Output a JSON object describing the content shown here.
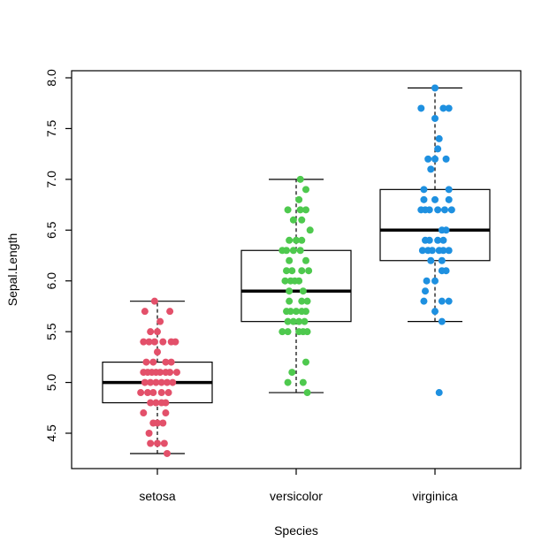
{
  "chart_data": {
    "type": "box",
    "xlabel": "Species",
    "ylabel": "Sepal.Length",
    "ylim": [
      4.2,
      8.05
    ],
    "yticks": [
      "4.5",
      "5.0",
      "5.5",
      "6.0",
      "6.5",
      "7.0",
      "7.5",
      "8.0"
    ],
    "categories": [
      "setosa",
      "versicolor",
      "virginica"
    ],
    "boxes": [
      {
        "category": "setosa",
        "min": 4.3,
        "q1": 4.8,
        "median": 5.0,
        "q3": 5.2,
        "max": 5.8,
        "color": "#e3506a",
        "points": [
          [
            -0.09,
            5.7
          ],
          [
            0.09,
            5.7
          ],
          [
            -0.02,
            5.8
          ],
          [
            0.02,
            5.6
          ],
          [
            0.0,
            5.5
          ],
          [
            -0.05,
            5.5
          ],
          [
            -0.1,
            5.4
          ],
          [
            -0.06,
            5.4
          ],
          [
            -0.02,
            5.4
          ],
          [
            0.04,
            5.4
          ],
          [
            0.1,
            5.4
          ],
          [
            0.13,
            5.4
          ],
          [
            0.0,
            5.3
          ],
          [
            -0.08,
            5.2
          ],
          [
            -0.03,
            5.2
          ],
          [
            0.06,
            5.2
          ],
          [
            0.1,
            5.2
          ],
          [
            -0.1,
            5.1
          ],
          [
            -0.07,
            5.1
          ],
          [
            -0.04,
            5.1
          ],
          [
            -0.01,
            5.1
          ],
          [
            0.02,
            5.1
          ],
          [
            0.06,
            5.1
          ],
          [
            0.09,
            5.1
          ],
          [
            0.14,
            5.1
          ],
          [
            -0.09,
            5.0
          ],
          [
            -0.05,
            5.0
          ],
          [
            -0.01,
            5.0
          ],
          [
            0.03,
            5.0
          ],
          [
            0.07,
            5.0
          ],
          [
            0.11,
            5.0
          ],
          [
            -0.12,
            4.9
          ],
          [
            -0.07,
            4.9
          ],
          [
            -0.03,
            4.9
          ],
          [
            0.03,
            4.9
          ],
          [
            0.08,
            4.9
          ],
          [
            -0.05,
            4.8
          ],
          [
            -0.01,
            4.8
          ],
          [
            0.03,
            4.8
          ],
          [
            0.06,
            4.8
          ],
          [
            -0.1,
            4.7
          ],
          [
            0.06,
            4.7
          ],
          [
            -0.03,
            4.6
          ],
          [
            0.0,
            4.6
          ],
          [
            0.04,
            4.6
          ],
          [
            -0.06,
            4.5
          ],
          [
            -0.05,
            4.4
          ],
          [
            0.0,
            4.4
          ],
          [
            0.05,
            4.4
          ],
          [
            0.07,
            4.3
          ]
        ]
      },
      {
        "category": "versicolor",
        "min": 4.9,
        "q1": 5.6,
        "median": 5.9,
        "q3": 6.3,
        "max": 7.0,
        "color": "#4ec94e",
        "points": [
          [
            0.03,
            7.0
          ],
          [
            0.07,
            6.9
          ],
          [
            0.02,
            6.8
          ],
          [
            -0.06,
            6.7
          ],
          [
            0.03,
            6.7
          ],
          [
            0.07,
            6.7
          ],
          [
            -0.02,
            6.6
          ],
          [
            0.04,
            6.6
          ],
          [
            0.1,
            6.5
          ],
          [
            -0.05,
            6.4
          ],
          [
            0.0,
            6.4
          ],
          [
            0.04,
            6.4
          ],
          [
            -0.1,
            6.3
          ],
          [
            -0.07,
            6.3
          ],
          [
            -0.02,
            6.3
          ],
          [
            0.03,
            6.3
          ],
          [
            -0.05,
            6.2
          ],
          [
            0.07,
            6.2
          ],
          [
            -0.07,
            6.1
          ],
          [
            -0.03,
            6.1
          ],
          [
            0.04,
            6.1
          ],
          [
            0.09,
            6.1
          ],
          [
            -0.08,
            6.0
          ],
          [
            -0.04,
            6.0
          ],
          [
            -0.01,
            6.0
          ],
          [
            0.02,
            6.0
          ],
          [
            0.05,
            5.9
          ],
          [
            -0.05,
            5.9
          ],
          [
            -0.05,
            5.8
          ],
          [
            0.04,
            5.8
          ],
          [
            0.08,
            5.8
          ],
          [
            -0.07,
            5.7
          ],
          [
            -0.04,
            5.7
          ],
          [
            0.0,
            5.7
          ],
          [
            0.04,
            5.7
          ],
          [
            0.07,
            5.7
          ],
          [
            -0.06,
            5.6
          ],
          [
            -0.02,
            5.6
          ],
          [
            0.02,
            5.6
          ],
          [
            0.06,
            5.6
          ],
          [
            -0.1,
            5.5
          ],
          [
            -0.06,
            5.5
          ],
          [
            0.02,
            5.5
          ],
          [
            0.05,
            5.5
          ],
          [
            0.08,
            5.5
          ],
          [
            0.07,
            5.2
          ],
          [
            -0.03,
            5.1
          ],
          [
            -0.06,
            5.0
          ],
          [
            0.05,
            5.0
          ],
          [
            0.08,
            4.9
          ]
        ]
      },
      {
        "category": "virginica",
        "min": 5.6,
        "q1": 6.2,
        "median": 6.5,
        "q3": 6.9,
        "max": 7.9,
        "color": "#1e90e0",
        "points": [
          [
            0.0,
            7.9
          ],
          [
            -0.1,
            7.7
          ],
          [
            0.06,
            7.7
          ],
          [
            0.1,
            7.7
          ],
          [
            0.0,
            7.6
          ],
          [
            0.03,
            7.4
          ],
          [
            0.02,
            7.3
          ],
          [
            -0.05,
            7.2
          ],
          [
            0.0,
            7.2
          ],
          [
            0.08,
            7.2
          ],
          [
            -0.03,
            7.1
          ],
          [
            -0.08,
            6.9
          ],
          [
            0.1,
            6.9
          ],
          [
            -0.08,
            6.8
          ],
          [
            0.0,
            6.8
          ],
          [
            0.1,
            6.8
          ],
          [
            -0.1,
            6.7
          ],
          [
            -0.07,
            6.7
          ],
          [
            -0.04,
            6.7
          ],
          [
            0.02,
            6.7
          ],
          [
            0.07,
            6.7
          ],
          [
            0.12,
            6.7
          ],
          [
            0.05,
            6.5
          ],
          [
            0.08,
            6.5
          ],
          [
            -0.07,
            6.4
          ],
          [
            -0.04,
            6.4
          ],
          [
            0.02,
            6.4
          ],
          [
            0.06,
            6.4
          ],
          [
            -0.09,
            6.3
          ],
          [
            -0.05,
            6.3
          ],
          [
            -0.02,
            6.3
          ],
          [
            0.03,
            6.3
          ],
          [
            0.06,
            6.3
          ],
          [
            0.1,
            6.3
          ],
          [
            0.05,
            6.2
          ],
          [
            -0.03,
            6.2
          ],
          [
            0.05,
            6.1
          ],
          [
            0.08,
            6.1
          ],
          [
            -0.06,
            6.0
          ],
          [
            0.0,
            6.0
          ],
          [
            -0.07,
            5.9
          ],
          [
            -0.08,
            5.8
          ],
          [
            0.05,
            5.8
          ],
          [
            0.1,
            5.8
          ],
          [
            0.0,
            5.7
          ],
          [
            0.05,
            5.6
          ],
          [
            0.03,
            4.9
          ]
        ]
      }
    ]
  }
}
